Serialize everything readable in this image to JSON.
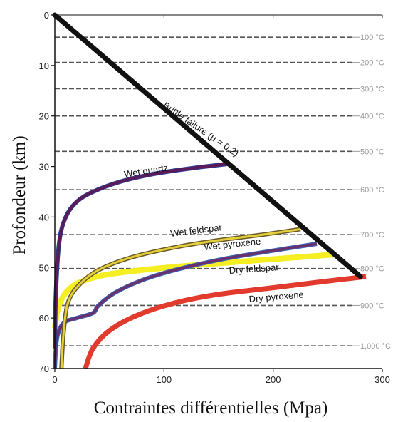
{
  "chart_data": {
    "type": "line",
    "xlabel": "Contraintes différentielles (Mpa)",
    "ylabel": "Profondeur (km)",
    "xlim": [
      0,
      300
    ],
    "ylim": [
      0,
      70
    ],
    "y_inverted": true,
    "x_ticks": [
      0,
      100,
      200,
      300
    ],
    "y_ticks": [
      0,
      10,
      20,
      30,
      40,
      50,
      60,
      70
    ],
    "isotherms": [
      {
        "label": "100 °C",
        "depth": 4.4
      },
      {
        "label": "200 °C",
        "depth": 9.4
      },
      {
        "label": "300 °C",
        "depth": 14.6
      },
      {
        "label": "400 °C",
        "depth": 20.0
      },
      {
        "label": "500 °C",
        "depth": 27.0
      },
      {
        "label": "600 °C",
        "depth": 34.6
      },
      {
        "label": "700 °C",
        "depth": 43.5
      },
      {
        "label": "800 °C",
        "depth": 50.2
      },
      {
        "label": "900 °C",
        "depth": 57.5
      },
      {
        "label": "1,000 °C",
        "depth": 65.5
      }
    ],
    "series": [
      {
        "name": "Brittle failure (μ = 0.2)",
        "color": "#111111",
        "points": [
          [
            0,
            0
          ],
          [
            280,
            51.8
          ]
        ]
      },
      {
        "name": "Wet quartz",
        "color": "#5b1a5a",
        "points": [
          [
            0,
            66
          ],
          [
            1,
            55
          ],
          [
            4,
            45
          ],
          [
            10,
            40
          ],
          [
            20,
            37
          ],
          [
            35,
            35
          ],
          [
            60,
            33
          ],
          [
            90,
            31.5
          ],
          [
            120,
            30.5
          ],
          [
            158,
            29.5
          ]
        ]
      },
      {
        "name": "Wet feldspar",
        "color": "#e3cf3a",
        "points": [
          [
            6,
            70
          ],
          [
            8,
            63
          ],
          [
            12,
            57
          ],
          [
            22,
            53.5
          ],
          [
            40,
            50.5
          ],
          [
            70,
            48
          ],
          [
            110,
            46
          ],
          [
            150,
            44.6
          ],
          [
            190,
            43.5
          ],
          [
            225,
            42.4
          ]
        ]
      },
      {
        "name": "Wet pyroxene",
        "color": "#6b2f6b",
        "points": [
          [
            0,
            70
          ],
          [
            2,
            64
          ],
          [
            8,
            61
          ],
          [
            20,
            60
          ],
          [
            35,
            59
          ],
          [
            40,
            57.5
          ],
          [
            55,
            55
          ],
          [
            80,
            52.5
          ],
          [
            110,
            50.5
          ],
          [
            150,
            48.5
          ],
          [
            190,
            47
          ],
          [
            240,
            45.3
          ]
        ]
      },
      {
        "name": "Dry feldspar",
        "color": "#f4ee22",
        "points": [
          [
            0,
            62
          ],
          [
            3,
            58
          ],
          [
            10,
            55
          ],
          [
            22,
            53
          ],
          [
            45,
            51.5
          ],
          [
            80,
            50.5
          ],
          [
            130,
            49.5
          ],
          [
            190,
            48.5
          ],
          [
            258,
            47.4
          ]
        ]
      },
      {
        "name": "Dry pyroxene",
        "color": "#e23a2c",
        "points": [
          [
            28,
            70
          ],
          [
            35,
            66
          ],
          [
            50,
            62.5
          ],
          [
            75,
            59.5
          ],
          [
            110,
            57
          ],
          [
            150,
            55.3
          ],
          [
            200,
            54
          ],
          [
            245,
            52.8
          ],
          [
            285,
            51.8
          ]
        ]
      }
    ]
  }
}
